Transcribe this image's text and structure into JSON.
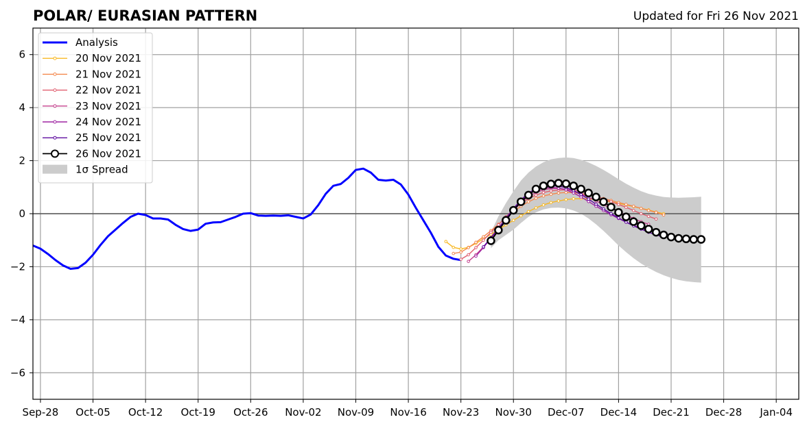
{
  "chart_data": {
    "type": "line",
    "title": "POLAR/ EURASIAN  PATTERN",
    "subtitle": "Updated for Fri 26 Nov 2021",
    "xlabel": "",
    "ylabel": "",
    "ylim": [
      -7,
      7
    ],
    "xlim": [
      "2021-09-27",
      "2022-01-07"
    ],
    "yticks": [
      -6,
      -4,
      -2,
      0,
      2,
      4,
      6
    ],
    "ytick_labels": [
      "−6",
      "−4",
      "−2",
      "0",
      "2",
      "4",
      "6"
    ],
    "xticks": [
      "2021-09-28",
      "2021-10-05",
      "2021-10-12",
      "2021-10-19",
      "2021-10-26",
      "2021-11-02",
      "2021-11-09",
      "2021-11-16",
      "2021-11-23",
      "2021-11-30",
      "2021-12-07",
      "2021-12-14",
      "2021-12-21",
      "2021-12-28",
      "2022-01-04"
    ],
    "xtick_labels": [
      "Sep-28",
      "Oct-05",
      "Oct-12",
      "Oct-19",
      "Oct-26",
      "Nov-02",
      "Nov-09",
      "Nov-16",
      "Nov-23",
      "Nov-30",
      "Dec-07",
      "Dec-14",
      "Dec-21",
      "Dec-28",
      "Jan-04"
    ],
    "grid": true,
    "legend_position": "upper-left",
    "zero_line": 0,
    "analysis": {
      "name": "Analysis",
      "color": "#0000ff",
      "start": "2021-09-27",
      "values": [
        -1.2,
        -1.32,
        -1.52,
        -1.75,
        -1.95,
        -2.08,
        -2.05,
        -1.85,
        -1.55,
        -1.18,
        -0.85,
        -0.6,
        -0.35,
        -0.12,
        0.0,
        -0.05,
        -0.18,
        -0.18,
        -0.22,
        -0.42,
        -0.58,
        -0.65,
        -0.6,
        -0.38,
        -0.33,
        -0.32,
        -0.22,
        -0.12,
        0.0,
        0.02,
        -0.07,
        -0.08,
        -0.07,
        -0.08,
        -0.06,
        -0.12,
        -0.18,
        -0.03,
        0.32,
        0.75,
        1.05,
        1.12,
        1.35,
        1.65,
        1.7,
        1.55,
        1.28,
        1.25,
        1.28,
        1.1,
        0.72,
        0.22,
        -0.25,
        -0.72,
        -1.25,
        -1.58,
        -1.7,
        -1.75
      ]
    },
    "forecasts": [
      {
        "name": "20 Nov 2021",
        "color": "#f8b822",
        "start": "2021-11-21",
        "values": [
          -1.05,
          -1.27,
          -1.33,
          -1.27,
          -1.12,
          -0.95,
          -0.78,
          -0.6,
          -0.42,
          -0.25,
          -0.08,
          0.08,
          0.22,
          0.33,
          0.42,
          0.48,
          0.53,
          0.56,
          0.57,
          0.56,
          0.53,
          0.49,
          0.44,
          0.39,
          0.33,
          0.27,
          0.2,
          0.14,
          0.06,
          0.0
        ]
      },
      {
        "name": "21 Nov 2021",
        "color": "#f3874c",
        "start": "2021-11-22",
        "values": [
          -1.5,
          -1.45,
          -1.28,
          -1.08,
          -0.87,
          -0.64,
          -0.4,
          -0.15,
          0.08,
          0.28,
          0.45,
          0.58,
          0.67,
          0.73,
          0.78,
          0.8,
          0.79,
          0.76,
          0.71,
          0.64,
          0.57,
          0.5,
          0.42,
          0.35,
          0.28,
          0.2,
          0.12,
          0.05,
          -0.05
        ]
      },
      {
        "name": "22 Nov 2021",
        "color": "#e05e6f",
        "start": "2021-11-23",
        "values": [
          -1.72,
          -1.55,
          -1.28,
          -1.0,
          -0.7,
          -0.42,
          -0.12,
          0.15,
          0.38,
          0.57,
          0.7,
          0.8,
          0.86,
          0.89,
          0.9,
          0.88,
          0.84,
          0.76,
          0.66,
          0.55,
          0.45,
          0.35,
          0.24,
          0.12,
          0.0,
          -0.1,
          -0.2
        ]
      },
      {
        "name": "23 Nov 2021",
        "color": "#c4408d",
        "start": "2021-11-24",
        "values": [
          -1.8,
          -1.55,
          -1.25,
          -0.92,
          -0.58,
          -0.22,
          0.12,
          0.42,
          0.65,
          0.8,
          0.9,
          0.95,
          0.95,
          0.92,
          0.85,
          0.75,
          0.62,
          0.48,
          0.34,
          0.2,
          0.06,
          -0.06,
          -0.18,
          -0.3,
          -0.4
        ]
      },
      {
        "name": "24 Nov 2021",
        "color": "#9e23a2",
        "start": "2021-11-25",
        "values": [
          -1.6,
          -1.28,
          -0.92,
          -0.55,
          -0.18,
          0.18,
          0.5,
          0.73,
          0.88,
          0.96,
          0.99,
          0.97,
          0.9,
          0.78,
          0.63,
          0.46,
          0.28,
          0.12,
          -0.04,
          -0.18,
          -0.32,
          -0.44,
          -0.55,
          -0.63,
          -0.7
        ]
      },
      {
        "name": "25 Nov 2021",
        "color": "#5c089f",
        "start": "2021-11-26",
        "values": [
          -1.25,
          -0.9,
          -0.55,
          -0.18,
          0.2,
          0.52,
          0.78,
          0.95,
          1.03,
          1.06,
          1.04,
          0.98,
          0.87,
          0.72,
          0.55,
          0.36,
          0.18,
          0.0,
          -0.16,
          -0.32,
          -0.46,
          -0.58,
          -0.7,
          -0.8,
          -0.88
        ]
      },
      {
        "name": "26 Nov 2021",
        "color": "#000000",
        "start": "2021-11-27",
        "values": [
          -1.02,
          -0.62,
          -0.25,
          0.13,
          0.45,
          0.7,
          0.93,
          1.05,
          1.12,
          1.15,
          1.13,
          1.05,
          0.93,
          0.78,
          0.63,
          0.45,
          0.25,
          0.05,
          -0.12,
          -0.3,
          -0.45,
          -0.58,
          -0.7,
          -0.8,
          -0.88,
          -0.93,
          -0.95,
          -0.97,
          -0.97
        ]
      }
    ],
    "spread": {
      "name": "1σ Spread",
      "color": "#cccccc",
      "start": "2021-11-27",
      "upper": [
        -0.7,
        -0.1,
        0.4,
        0.85,
        1.25,
        1.55,
        1.78,
        1.94,
        2.05,
        2.1,
        2.12,
        2.1,
        2.03,
        1.93,
        1.8,
        1.65,
        1.48,
        1.3,
        1.13,
        0.98,
        0.85,
        0.75,
        0.68,
        0.63,
        0.61,
        0.6,
        0.61,
        0.62,
        0.64
      ],
      "lower": [
        -1.3,
        -1.0,
        -0.8,
        -0.6,
        -0.35,
        -0.12,
        0.05,
        0.16,
        0.22,
        0.23,
        0.2,
        0.12,
        0.0,
        -0.18,
        -0.4,
        -0.65,
        -0.92,
        -1.2,
        -1.45,
        -1.68,
        -1.88,
        -2.05,
        -2.2,
        -2.32,
        -2.42,
        -2.5,
        -2.55,
        -2.58,
        -2.6
      ]
    }
  }
}
